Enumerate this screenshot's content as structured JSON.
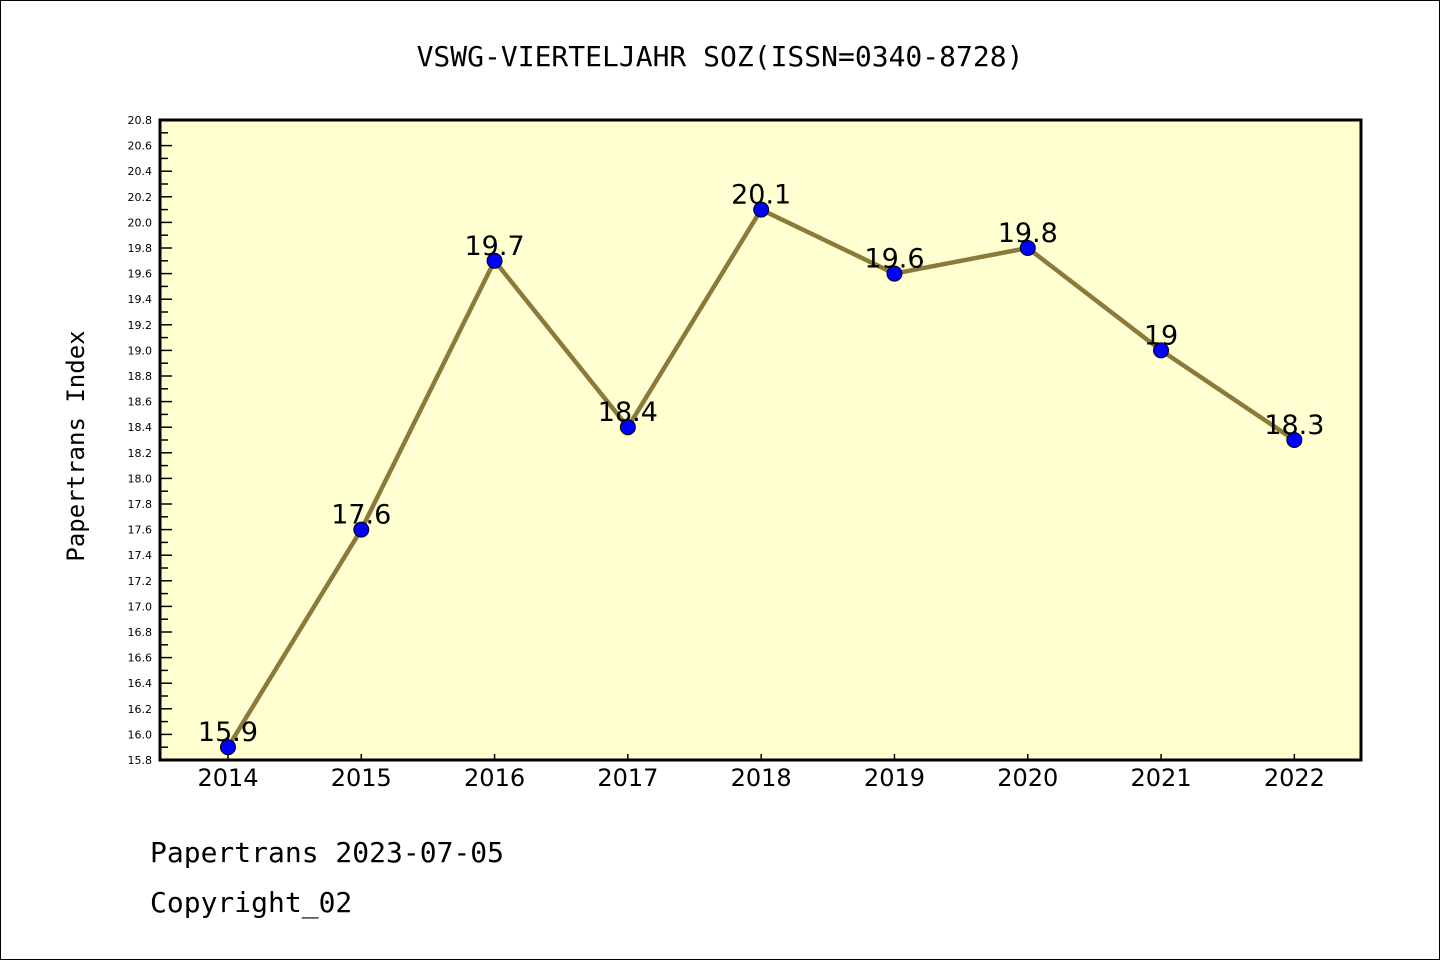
{
  "chart_data": {
    "type": "line",
    "title": "VSWG-VIERTELJAHR SOZ(ISSN=0340-8728)",
    "xlabel": "",
    "ylabel": "Papertrans Index",
    "x": [
      2014,
      2015,
      2016,
      2017,
      2018,
      2019,
      2020,
      2021,
      2022
    ],
    "series": [
      {
        "name": "Papertrans Index",
        "values": [
          15.9,
          17.6,
          19.7,
          18.4,
          20.1,
          19.6,
          19.8,
          19.0,
          18.3
        ],
        "labels": [
          "15.9",
          "17.6",
          "19.7",
          "18.4",
          "20.1",
          "19.6",
          "19.8",
          "19",
          "18.3"
        ]
      }
    ],
    "ylim": [
      15.8,
      20.8
    ],
    "yticks": [
      "15.8",
      "16.0",
      "16.2",
      "16.4",
      "16.6",
      "16.8",
      "17.0",
      "17.2",
      "17.4",
      "17.6",
      "17.8",
      "18.0",
      "18.2",
      "18.4",
      "18.6",
      "18.8",
      "19.0",
      "19.2",
      "19.4",
      "19.6",
      "19.8",
      "20.0",
      "20.2",
      "20.4",
      "20.6",
      "20.8"
    ],
    "xticks": [
      "2014",
      "2015",
      "2016",
      "2017",
      "2018",
      "2019",
      "2020",
      "2021",
      "2022"
    ],
    "grid": false,
    "colors": {
      "background": "#FFFFD2",
      "line": "#8B7B3A",
      "marker": "#0000FF"
    }
  },
  "footer": {
    "line1": "Papertrans 2023-07-05",
    "line2": "Copyright_02"
  }
}
